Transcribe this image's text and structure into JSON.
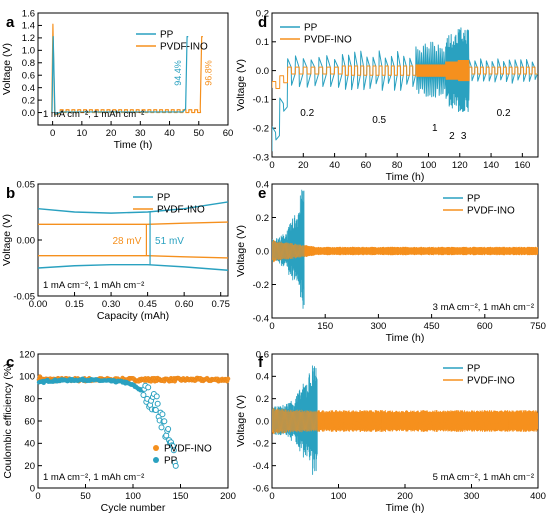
{
  "colors": {
    "pp": "#2aa1c0",
    "pvdf": "#f5901e",
    "axis": "#000000"
  },
  "chart_data": [
    {
      "id": "a",
      "panel_label": "a",
      "type": "line",
      "xlabel": "Time (h)",
      "ylabel": "Voltage (V)",
      "xlim": [
        -5,
        60
      ],
      "ylim": [
        -0.2,
        1.6
      ],
      "xticks": [
        0,
        10,
        20,
        30,
        40,
        50,
        60
      ],
      "xtick_labels": [
        "0",
        "10",
        "20",
        "30",
        "40",
        "50",
        "60"
      ],
      "yticks": [
        0.0,
        0.2,
        0.4,
        0.6,
        0.8,
        1.0,
        1.2,
        1.4,
        1.6
      ],
      "ytick_labels": [
        "0.0",
        "0.2",
        "0.4",
        "0.6",
        "0.8",
        "1.0",
        "1.2",
        "1.4",
        "1.6"
      ],
      "legend": [
        "PP",
        "PVDF-INO"
      ],
      "legend_position": "top-right",
      "conditions": "1 mA cm⁻², 1 mAh cm⁻²",
      "annotations": [
        {
          "text": "94.4%",
          "color": "pp"
        },
        {
          "text": "96.8%",
          "color": "pvdf"
        }
      ],
      "series": [
        {
          "name": "PP",
          "description": "initial spike to ~1.2 V, cycling near 0 V, final charge rise to ~1.2 V at ~46 h",
          "spike_t": 0.2,
          "spike_v": 1.22,
          "end_t": 46,
          "end_v": 1.22
        },
        {
          "name": "PVDF-INO",
          "description": "initial spike to ~1.42 V, cycling near 0.02 V, final charge rise to ~1.22 V at ~51 h",
          "spike_t": 0.1,
          "spike_v": 1.42,
          "end_t": 51,
          "end_v": 1.22
        }
      ]
    },
    {
      "id": "b",
      "panel_label": "b",
      "type": "line",
      "xlabel": "Capacity (mAh)",
      "ylabel": "Voltage (V)",
      "xlim": [
        0.0,
        0.78
      ],
      "ylim": [
        -0.05,
        0.05
      ],
      "xticks": [
        0.0,
        0.15,
        0.3,
        0.45,
        0.6,
        0.75
      ],
      "xtick_labels": [
        "0.00",
        "0.15",
        "0.30",
        "0.45",
        "0.60",
        "0.75"
      ],
      "yticks": [
        -0.05,
        0.0,
        0.05
      ],
      "ytick_labels": [
        "-0.05",
        "0.00",
        "0.05"
      ],
      "legend": [
        "PP",
        "PVDF-INO"
      ],
      "legend_position": "top-right",
      "conditions": "1 mA cm⁻², 1 mAh cm⁻²",
      "annotations": [
        {
          "text": "28 mV",
          "color": "pvdf"
        },
        {
          "text": "51 mV",
          "color": "pp"
        }
      ],
      "series": [
        {
          "name": "PP",
          "x": [
            0.0,
            0.15,
            0.3,
            0.45,
            0.6,
            0.78
          ],
          "upper": [
            0.028,
            0.025,
            0.024,
            0.025,
            0.028,
            0.034
          ],
          "lower": [
            -0.025,
            -0.023,
            -0.022,
            -0.022,
            -0.024,
            -0.027
          ]
        },
        {
          "name": "PVDF-INO",
          "x": [
            0.0,
            0.15,
            0.3,
            0.45,
            0.6,
            0.78
          ],
          "upper": [
            0.014,
            0.014,
            0.014,
            0.014,
            0.015,
            0.016
          ],
          "lower": [
            -0.014,
            -0.014,
            -0.014,
            -0.014,
            -0.015,
            -0.016
          ]
        }
      ]
    },
    {
      "id": "c",
      "panel_label": "c",
      "type": "scatter",
      "xlabel": "Cycle number",
      "ylabel": "Coulombic efficiency (%)",
      "xlim": [
        0,
        200
      ],
      "ylim": [
        0,
        120
      ],
      "xticks": [
        0,
        50,
        100,
        150,
        200
      ],
      "xtick_labels": [
        "0",
        "50",
        "100",
        "150",
        "200"
      ],
      "yticks": [
        0,
        20,
        40,
        60,
        80,
        100,
        120
      ],
      "ytick_labels": [
        "0",
        "20",
        "40",
        "60",
        "80",
        "100",
        "120"
      ],
      "legend": [
        "PVDF-INO",
        "PP"
      ],
      "legend_position": "bottom-right",
      "conditions": "1 mA cm⁻², 1 mAh cm⁻²",
      "series": [
        {
          "name": "PVDF-INO",
          "x": [
            1,
            10,
            50,
            100,
            150,
            200
          ],
          "y": [
            98,
            97,
            97,
            97,
            97,
            97
          ],
          "spread": 1.5
        },
        {
          "name": "PP",
          "x": [
            1,
            10,
            50,
            90,
            100,
            110,
            118,
            125,
            130,
            135,
            138,
            140,
            143,
            145
          ],
          "y": [
            94,
            96,
            97,
            95,
            92,
            87,
            81,
            74,
            63,
            50,
            42,
            36,
            32,
            28
          ]
        }
      ]
    },
    {
      "id": "d",
      "panel_label": "d",
      "type": "line",
      "xlabel": "Time (h)",
      "ylabel": "Voltage (V)",
      "xlim": [
        0,
        170
      ],
      "ylim": [
        -0.3,
        0.2
      ],
      "xticks": [
        0,
        20,
        40,
        60,
        80,
        100,
        120,
        140,
        160
      ],
      "xtick_labels": [
        "0",
        "20",
        "40",
        "60",
        "80",
        "100",
        "120",
        "140",
        "160"
      ],
      "yticks": [
        -0.3,
        -0.2,
        -0.1,
        0.0,
        0.1,
        0.2
      ],
      "ytick_labels": [
        "-0.3",
        "-0.2",
        "-0.1",
        "0.0",
        "0.1",
        "0.2"
      ],
      "legend": [
        "PP",
        "PVDF-INO"
      ],
      "legend_position": "top-left",
      "rate_labels": [
        "0.2",
        "0.5",
        "1",
        "2",
        "3",
        "0.2"
      ],
      "segments": [
        {
          "start": 0,
          "end": 45,
          "rate": "0.2",
          "pp_amp": 0.06,
          "pvdf_amp": 0.012
        },
        {
          "start": 45,
          "end": 92,
          "rate": "0.5",
          "pp_amp": 0.07,
          "pvdf_amp": 0.016
        },
        {
          "start": 92,
          "end": 111,
          "rate": "1",
          "pp_amp": 0.1,
          "pvdf_amp": 0.02
        },
        {
          "start": 111,
          "end": 119,
          "rate": "2",
          "pp_amp": 0.13,
          "pvdf_amp": 0.03
        },
        {
          "start": 119,
          "end": 126,
          "rate": "3",
          "pp_amp": 0.15,
          "pvdf_amp": 0.035
        },
        {
          "start": 126,
          "end": 170,
          "rate": "0.2",
          "pp_amp": 0.045,
          "pvdf_amp": 0.012
        }
      ]
    },
    {
      "id": "e",
      "panel_label": "e",
      "type": "line",
      "xlabel": "Time (h)",
      "ylabel": "Voltage (V)",
      "xlim": [
        0,
        750
      ],
      "ylim": [
        -0.4,
        0.4
      ],
      "xticks": [
        0,
        150,
        300,
        450,
        600,
        750
      ],
      "xtick_labels": [
        "0",
        "150",
        "300",
        "450",
        "600",
        "750"
      ],
      "yticks": [
        -0.4,
        -0.2,
        0.0,
        0.2,
        0.4
      ],
      "ytick_labels": [
        "-0.4",
        "-0.2",
        "0.0",
        "0.2",
        "0.4"
      ],
      "legend": [
        "PP",
        "PVDF-INO"
      ],
      "legend_position": "top-right",
      "conditions": "3 mA cm⁻², 1 mAh cm⁻²",
      "series": [
        {
          "name": "PP",
          "end_t": 90,
          "amp_start": 0.07,
          "amp_end": 0.4
        },
        {
          "name": "PVDF-INO",
          "end_t": 750,
          "amp_start": 0.065,
          "amp_end": 0.022
        }
      ]
    },
    {
      "id": "f",
      "panel_label": "f",
      "type": "line",
      "xlabel": "Time (h)",
      "ylabel": "Voltage (V)",
      "xlim": [
        0,
        400
      ],
      "ylim": [
        -0.6,
        0.6
      ],
      "xticks": [
        0,
        100,
        200,
        300,
        400
      ],
      "xtick_labels": [
        "0",
        "100",
        "200",
        "300",
        "400"
      ],
      "yticks": [
        -0.6,
        -0.4,
        -0.2,
        0.0,
        0.2,
        0.4,
        0.6
      ],
      "ytick_labels": [
        "-0.6",
        "-0.4",
        "-0.2",
        "0.0",
        "0.2",
        "0.4",
        "0.6"
      ],
      "legend": [
        "PP",
        "PVDF-INO"
      ],
      "legend_position": "top-right",
      "conditions": "5 mA cm⁻², 1 mAh cm⁻²",
      "series": [
        {
          "name": "PP",
          "end_t": 68,
          "amp_start": 0.12,
          "amp_end": 0.6
        },
        {
          "name": "PVDF-INO",
          "end_t": 400,
          "amp_start": 0.11,
          "amp_end": 0.09
        }
      ]
    }
  ]
}
